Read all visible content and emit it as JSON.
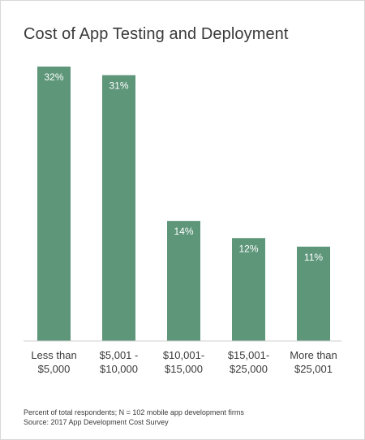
{
  "chart_data": {
    "type": "bar",
    "title": "Cost of App Testing and Deployment",
    "categories": [
      "Less than $5,000",
      "$5,001 - $10,000",
      "$10,001- $15,000",
      "$15,001- $25,000",
      "More than $25,001"
    ],
    "category_lines": [
      [
        "Less than",
        "$5,000"
      ],
      [
        "$5,001 -",
        "$10,000"
      ],
      [
        "$10,001-",
        "$15,000"
      ],
      [
        "$15,001-",
        "$25,000"
      ],
      [
        "More than",
        "$25,001"
      ]
    ],
    "values": [
      32,
      31,
      14,
      12,
      11
    ],
    "value_labels": [
      "32%",
      "31%",
      "14%",
      "12%",
      "11%"
    ],
    "ylim": [
      0,
      32
    ],
    "bar_color": "#5e967a",
    "grid": false
  },
  "footnote": {
    "line1": "Percent of total respondents; N = 102 mobile app development firms",
    "line2": "Source:  2017 App Development Cost Survey"
  }
}
